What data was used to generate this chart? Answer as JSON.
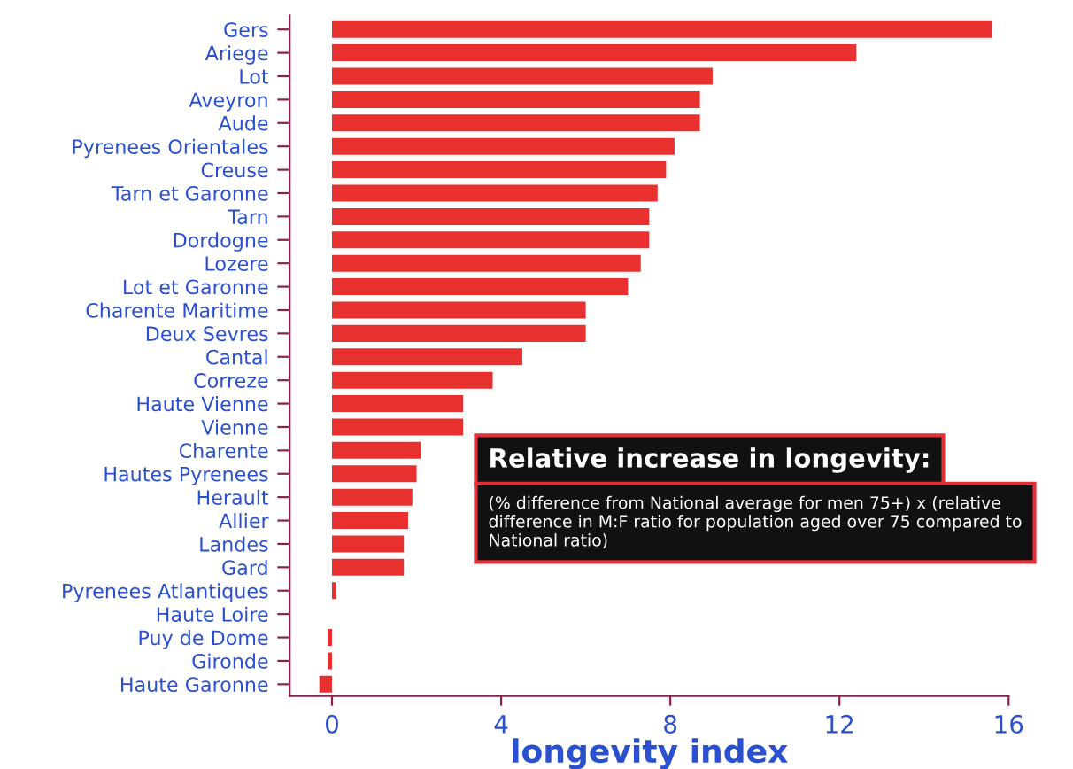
{
  "chart_data": {
    "type": "bar",
    "orientation": "horizontal",
    "xlabel": "longevity index",
    "categories": [
      "Gers",
      "Ariege",
      "Lot",
      "Aveyron",
      "Aude",
      "Pyrenees Orientales",
      "Creuse",
      "Tarn et Garonne",
      "Tarn",
      "Dordogne",
      "Lozere",
      "Lot et Garonne",
      "Charente Maritime",
      "Deux Sevres",
      "Cantal",
      "Correze",
      "Haute Vienne",
      "Vienne",
      "Charente",
      "Hautes Pyrenees",
      "Herault",
      "Allier",
      "Landes",
      "Gard",
      "Pyrenees Atlantiques",
      "Haute Loire",
      "Puy de Dome",
      "Gironde",
      "Haute Garonne"
    ],
    "values": [
      15.6,
      12.4,
      9.0,
      8.7,
      8.7,
      8.1,
      7.9,
      7.7,
      7.5,
      7.5,
      7.3,
      7.0,
      6.0,
      6.0,
      4.5,
      3.8,
      3.1,
      3.1,
      2.1,
      2.0,
      1.9,
      1.8,
      1.7,
      1.7,
      0.1,
      0,
      -0.1,
      -0.1,
      -0.3
    ],
    "color": "#e8302f",
    "xlim": [
      -1,
      16
    ],
    "xticks": [
      0,
      4,
      8,
      12,
      16
    ],
    "grid": false,
    "legend": false,
    "annotations": [
      "Relative increase in longevity:",
      "(% difference from National average for men 75+) x (relative difference in M:F ratio for population aged over 75 compared to National ratio)"
    ]
  }
}
